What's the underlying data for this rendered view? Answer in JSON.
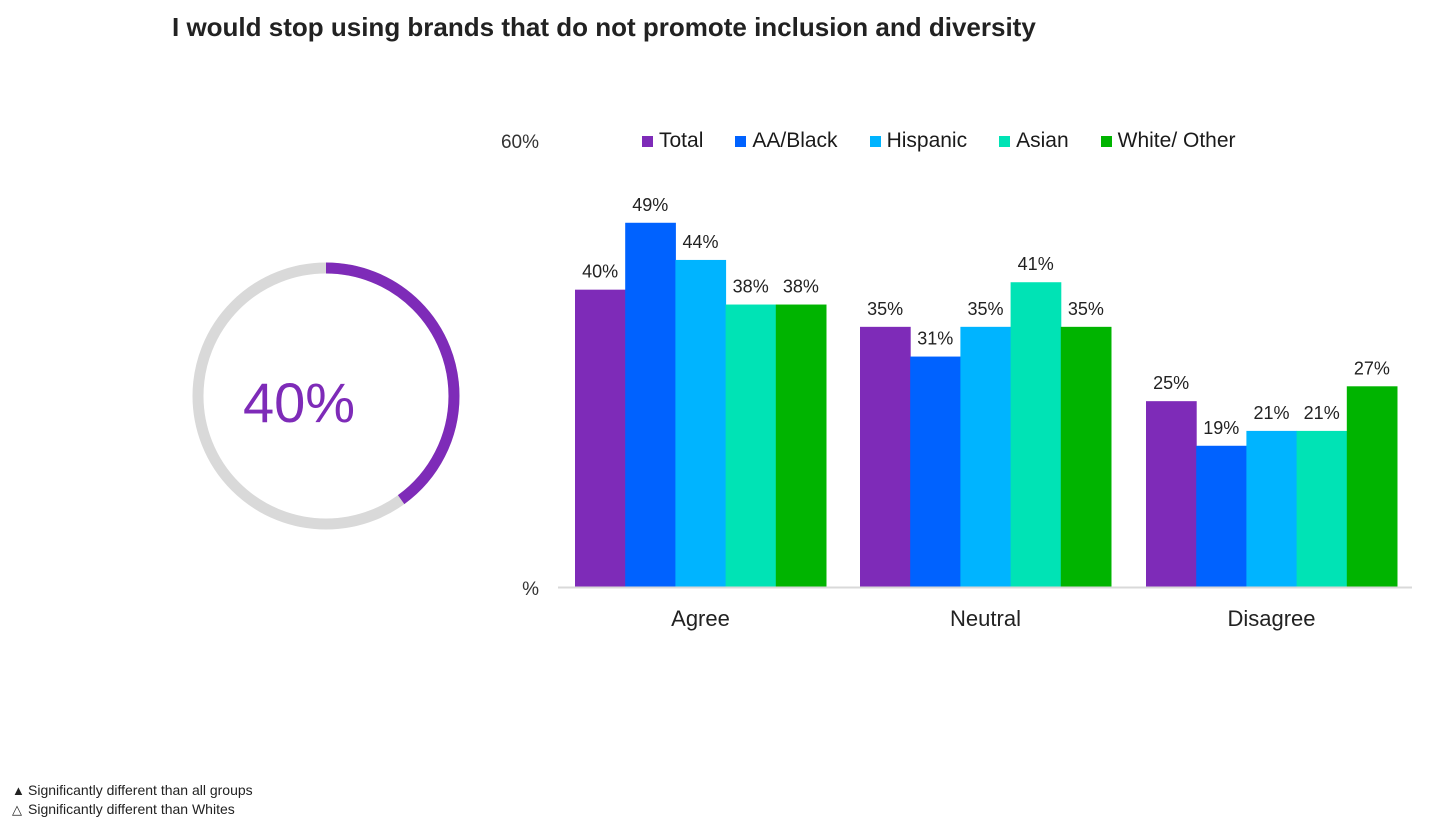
{
  "title": "I would stop using brands that do not promote inclusion and diversity",
  "donut": {
    "value": 40,
    "label": "40%",
    "color": "#7e2bb8",
    "track_color": "#d9d9d9"
  },
  "footnotes": [
    {
      "symbol": "▲",
      "text": "Significantly different than all groups"
    },
    {
      "symbol": "△",
      "text": "Significantly different than Whites"
    }
  ],
  "chart_data": {
    "type": "bar",
    "categories": [
      "Agree",
      "Neutral",
      "Disagree"
    ],
    "series": [
      {
        "name": "Total",
        "color": "#7e2bb8",
        "values": [
          40,
          35,
          25
        ],
        "labels": [
          "40%",
          "35%",
          "25%"
        ]
      },
      {
        "name": "AA/Black",
        "color": "#0062ff",
        "values": [
          49,
          31,
          19
        ],
        "labels": [
          "49%",
          "31%",
          "19%"
        ]
      },
      {
        "name": "Hispanic",
        "color": "#00b4ff",
        "values": [
          44,
          35,
          21
        ],
        "labels": [
          "44%",
          "35%",
          "21%"
        ]
      },
      {
        "name": "Asian",
        "color": "#00e3b5",
        "values": [
          38,
          41,
          21
        ],
        "labels": [
          "38%",
          "41%",
          "21%"
        ]
      },
      {
        "name": "White/ Other",
        "color": "#00b400",
        "values": [
          38,
          35,
          27
        ],
        "labels": [
          "38%",
          "35%",
          "27%"
        ]
      }
    ],
    "ylim": [
      0,
      60
    ],
    "y_tick_labels": [
      "%",
      "60%"
    ],
    "legend_position": "top",
    "grid": false
  }
}
